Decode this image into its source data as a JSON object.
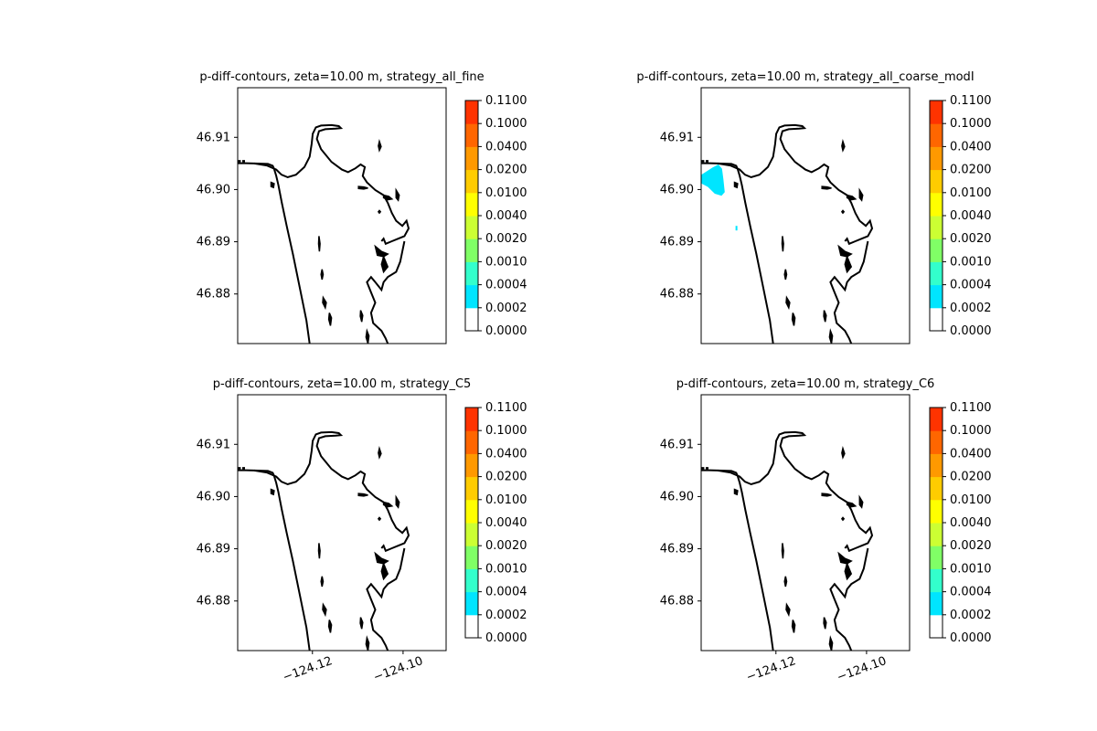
{
  "figure": {
    "background": "#ffffff"
  },
  "colorbar": {
    "ticks": [
      "0.0000",
      "0.0002",
      "0.0004",
      "0.0010",
      "0.0020",
      "0.0040",
      "0.0100",
      "0.0200",
      "0.0400",
      "0.1000",
      "0.1100"
    ],
    "colors": [
      "#ffffff",
      "#00e5ff",
      "#33ffcc",
      "#80ff66",
      "#ccff33",
      "#ffff00",
      "#ffcc00",
      "#ff9900",
      "#ff6600",
      "#ff3300",
      "#ff0000"
    ]
  },
  "coastline_color": "#000000",
  "chart_data": [
    {
      "type": "heatmap",
      "title": "p-diff-contours, zeta=10.00 m, strategy_all_fine",
      "ylim": [
        46.8705,
        46.9195
      ],
      "xlim": [
        -124.1365,
        -124.0905
      ],
      "y_ticks": [
        46.88,
        46.89,
        46.9,
        46.91
      ],
      "y_tick_labels": [
        "46.88",
        "46.89",
        "46.90",
        "46.91"
      ],
      "x_ticks": [],
      "x_tick_labels": [],
      "filled_regions": []
    },
    {
      "type": "heatmap",
      "title": "p-diff-contours, zeta=10.00 m, strategy_all_coarse_modI",
      "ylim": [
        46.8705,
        46.9195
      ],
      "xlim": [
        -124.1365,
        -124.0905
      ],
      "y_ticks": [
        46.88,
        46.89,
        46.9,
        46.91
      ],
      "y_tick_labels": [
        "46.88",
        "46.89",
        "46.90",
        "46.91"
      ],
      "x_ticks": [],
      "x_tick_labels": [],
      "filled_regions": [
        {
          "level": "0.0002-0.0004",
          "color": "#00e5ff",
          "points": [
            [
              -124.1365,
              46.9028
            ],
            [
              -124.134,
              46.9042
            ],
            [
              -124.1327,
              46.9048
            ],
            [
              -124.1319,
              46.904
            ],
            [
              -124.1316,
              46.902
            ],
            [
              -124.1313,
              46.8995
            ],
            [
              -124.132,
              46.8988
            ],
            [
              -124.1335,
              46.8992
            ],
            [
              -124.135,
              46.9005
            ],
            [
              -124.1365,
              46.9012
            ]
          ]
        }
      ]
    },
    {
      "type": "heatmap",
      "title": "p-diff-contours, zeta=10.00 m, strategy_C5",
      "ylim": [
        46.8705,
        46.9195
      ],
      "xlim": [
        -124.1365,
        -124.0905
      ],
      "y_ticks": [
        46.88,
        46.89,
        46.9,
        46.91
      ],
      "y_tick_labels": [
        "46.88",
        "46.89",
        "46.90",
        "46.91"
      ],
      "x_ticks": [
        -124.12,
        -124.1
      ],
      "x_tick_labels": [
        "−124.12",
        "−124.10"
      ],
      "filled_regions": []
    },
    {
      "type": "heatmap",
      "title": "p-diff-contours, zeta=10.00 m, strategy_C6",
      "ylim": [
        46.8705,
        46.9195
      ],
      "xlim": [
        -124.1365,
        -124.0905
      ],
      "y_ticks": [
        46.88,
        46.89,
        46.9,
        46.91
      ],
      "y_tick_labels": [
        "46.88",
        "46.89",
        "46.90",
        "46.91"
      ],
      "x_ticks": [
        -124.12,
        -124.1
      ],
      "x_tick_labels": [
        "−124.12",
        "−124.10"
      ],
      "filled_regions": []
    }
  ]
}
